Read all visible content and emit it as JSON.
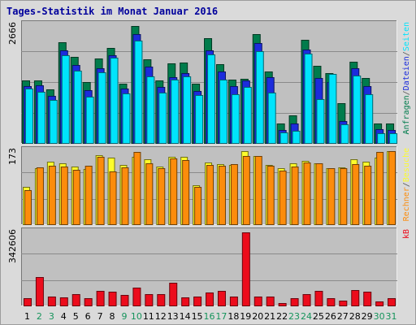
{
  "title": "Tages-Statistik im Monat Januar 2016",
  "colors": {
    "anfragen": "#007c4c",
    "dateien": "#1c2cdc",
    "seiten": "#00e4fc",
    "besuche": "#fcfc2c",
    "rechner": "#fc8c0c",
    "kb": "#ec0c1c",
    "panel": "#c0c0c0",
    "weekend": "#16945c"
  },
  "chart_data": [
    {
      "type": "bar",
      "panel": "requests",
      "ymax_label": "2666",
      "ymax": 2666,
      "ylim": [
        0,
        2666
      ],
      "legend": [
        "Anfragen",
        "/",
        "Dateien",
        "/",
        "Seiten"
      ],
      "categories": [
        "1",
        "2",
        "3",
        "4",
        "5",
        "6",
        "7",
        "8",
        "9",
        "10",
        "11",
        "12",
        "13",
        "14",
        "15",
        "16",
        "17",
        "18",
        "19",
        "20",
        "21",
        "22",
        "23",
        "24",
        "25",
        "26",
        "27",
        "28",
        "29",
        "30",
        "31"
      ],
      "series": [
        {
          "name": "Anfragen",
          "values": [
            1420,
            1420,
            1225,
            2280,
            1945,
            1390,
            1910,
            2150,
            1350,
            2650,
            1890,
            1430,
            1800,
            1825,
            1350,
            2380,
            1790,
            1450,
            1455,
            2460,
            1630,
            460,
            630,
            2340,
            1760,
            1580,
            920,
            1850,
            1470,
            460,
            460
          ]
        },
        {
          "name": "Dateien",
          "values": [
            1300,
            1320,
            1070,
            2100,
            1780,
            1210,
            1700,
            1990,
            1240,
            2470,
            1730,
            1280,
            1500,
            1580,
            1190,
            2100,
            1620,
            1300,
            1430,
            2260,
            1500,
            310,
            450,
            2120,
            1470,
            1390,
            520,
            1690,
            1300,
            330,
            310
          ]
        },
        {
          "name": "Seiten",
          "values": [
            1240,
            1160,
            980,
            1990,
            1640,
            1060,
            1610,
            1930,
            1140,
            2310,
            1510,
            1150,
            1450,
            1510,
            1100,
            2010,
            1440,
            1120,
            1270,
            2090,
            1150,
            260,
            300,
            2020,
            1000,
            1570,
            440,
            1530,
            1120,
            230,
            240
          ]
        }
      ]
    },
    {
      "type": "bar",
      "panel": "visits",
      "ymax_label": "173",
      "ymax": 173,
      "ylim": [
        0,
        173
      ],
      "legend": [
        "Rechner",
        "/",
        "Besuche"
      ],
      "categories": [
        "1",
        "2",
        "3",
        "4",
        "5",
        "6",
        "7",
        "8",
        "9",
        "10",
        "11",
        "12",
        "13",
        "14",
        "15",
        "16",
        "17",
        "18",
        "19",
        "20",
        "21",
        "22",
        "23",
        "24",
        "25",
        "26",
        "27",
        "28",
        "29",
        "30",
        "31"
      ],
      "series": [
        {
          "name": "Besuche",
          "values": [
            90,
            133,
            148,
            145,
            136,
            131,
            164,
            158,
            140,
            160,
            154,
            136,
            160,
            160,
            94,
            146,
            143,
            140,
            173,
            162,
            141,
            133,
            144,
            150,
            144,
            134,
            135,
            154,
            148,
            158,
            173
          ]
        },
        {
          "name": "Rechner",
          "values": [
            82,
            135,
            139,
            137,
            129,
            138,
            160,
            125,
            135,
            171,
            145,
            133,
            155,
            152,
            89,
            141,
            138,
            143,
            162,
            162,
            138,
            128,
            137,
            146,
            144,
            133,
            134,
            143,
            138,
            172,
            173
          ]
        }
      ]
    },
    {
      "type": "bar",
      "panel": "kb",
      "ymax_label": "342606",
      "ymax": 342606,
      "ylim": [
        0,
        342606
      ],
      "legend": [
        "kB"
      ],
      "categories": [
        "1",
        "2",
        "3",
        "4",
        "5",
        "6",
        "7",
        "8",
        "9",
        "10",
        "11",
        "12",
        "13",
        "14",
        "15",
        "16",
        "17",
        "18",
        "19",
        "20",
        "21",
        "22",
        "23",
        "24",
        "25",
        "26",
        "27",
        "28",
        "29",
        "30",
        "31"
      ],
      "series": [
        {
          "name": "kB",
          "values": [
            37000,
            135000,
            44000,
            40000,
            58000,
            38000,
            72000,
            68000,
            54000,
            88000,
            56000,
            56000,
            108000,
            40000,
            44000,
            64000,
            72000,
            47000,
            342606,
            47000,
            47000,
            16000,
            38000,
            58000,
            72000,
            39000,
            28000,
            74000,
            69000,
            22000,
            36000
          ]
        }
      ]
    }
  ],
  "x_axis": {
    "labels": [
      "1",
      "2",
      "3",
      "4",
      "5",
      "6",
      "7",
      "8",
      "9",
      "10",
      "11",
      "12",
      "13",
      "14",
      "15",
      "16",
      "17",
      "18",
      "19",
      "20",
      "21",
      "22",
      "23",
      "24",
      "25",
      "26",
      "27",
      "28",
      "29",
      "30",
      "31"
    ],
    "weekend_days": [
      "2",
      "3",
      "9",
      "10",
      "16",
      "17",
      "23",
      "24",
      "30",
      "31"
    ]
  }
}
